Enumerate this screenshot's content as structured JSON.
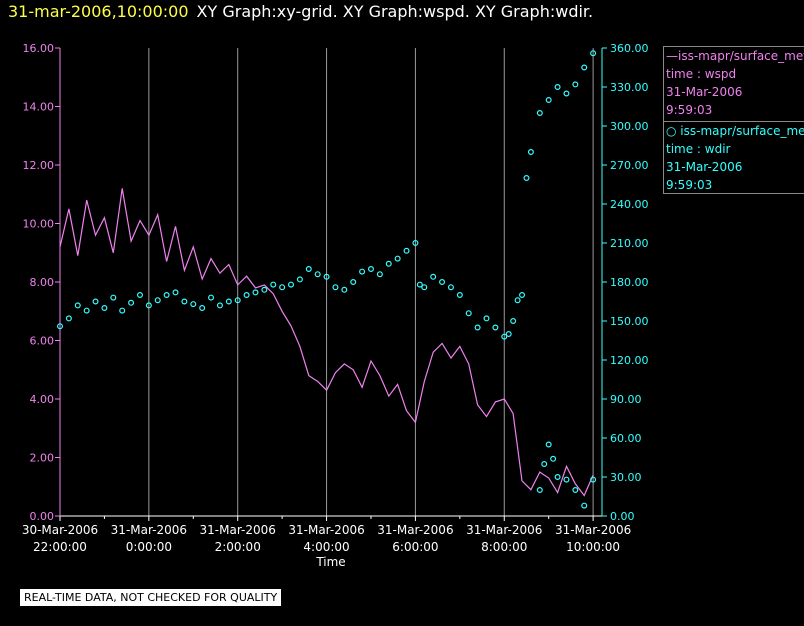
{
  "header": {
    "time": "31-mar-2006,10:00:00",
    "graphs": "XY Graph:xy-grid.  XY Graph:wspd.  XY Graph:wdir."
  },
  "legend": {
    "wspd": {
      "name": "iss-mapr/surface_met",
      "var": "time : wspd",
      "date": "31-Mar-2006",
      "time": "9:59:03"
    },
    "wdir": {
      "name": "iss-mapr/surface_met",
      "var": "time : wdir",
      "date": "31-Mar-2006",
      "time": "9:59:03"
    }
  },
  "footer": {
    "quality": "REAL-TIME DATA, NOT CHECKED FOR QUALITY"
  },
  "colors": {
    "wspd": "#ee82ee",
    "wdir": "#33ffff",
    "grid": "#9a9a9a",
    "axis": "#ffffff"
  },
  "chart_data": {
    "type": "line",
    "xlabel": "Time",
    "xlim": [
      22,
      10.2
    ],
    "x_ticks": [
      {
        "x": 22,
        "date": "30-Mar-2006",
        "time": "22:00:00"
      },
      {
        "x": 0,
        "date": "31-Mar-2006",
        "time": "0:00:00"
      },
      {
        "x": 2,
        "date": "31-Mar-2006",
        "time": "2:00:00"
      },
      {
        "x": 4,
        "date": "31-Mar-2006",
        "time": "4:00:00"
      },
      {
        "x": 6,
        "date": "31-Mar-2006",
        "time": "6:00:00"
      },
      {
        "x": 8,
        "date": "31-Mar-2006",
        "time": "8:00:00"
      },
      {
        "x": 10,
        "date": "31-Mar-2006",
        "time": "10:00:00"
      }
    ],
    "left_axis": {
      "series": "wspd",
      "ylim": [
        0,
        16
      ],
      "ticks": [
        "0.00",
        "2.00",
        "4.00",
        "6.00",
        "8.00",
        "10.00",
        "12.00",
        "14.00",
        "16.00"
      ]
    },
    "right_axis": {
      "series": "wdir",
      "ylim": [
        0,
        360
      ],
      "ticks": [
        "0.00",
        "30.00",
        "60.00",
        "90.00",
        "120.00",
        "150.00",
        "180.00",
        "210.00",
        "240.00",
        "270.00",
        "300.00",
        "330.00",
        "360.00"
      ]
    },
    "series": [
      {
        "key": "wspd",
        "style": "line",
        "x": [
          22.0,
          22.2,
          22.4,
          22.6,
          22.8,
          23.0,
          23.2,
          23.4,
          23.6,
          23.8,
          0.0,
          0.2,
          0.4,
          0.6,
          0.8,
          1.0,
          1.2,
          1.4,
          1.6,
          1.8,
          2.0,
          2.2,
          2.4,
          2.6,
          2.8,
          3.0,
          3.2,
          3.4,
          3.6,
          3.8,
          4.0,
          4.2,
          4.4,
          4.6,
          4.8,
          5.0,
          5.2,
          5.4,
          5.6,
          5.8,
          6.0,
          6.2,
          6.4,
          6.6,
          6.8,
          7.0,
          7.2,
          7.4,
          7.6,
          7.8,
          8.0,
          8.2,
          8.4,
          8.6,
          8.8,
          9.0,
          9.2,
          9.4,
          9.6,
          9.8,
          10.0
        ],
        "values": [
          9.2,
          10.5,
          8.9,
          10.8,
          9.6,
          10.2,
          9.0,
          11.2,
          9.4,
          10.1,
          9.6,
          10.3,
          8.7,
          9.9,
          8.4,
          9.2,
          8.1,
          8.8,
          8.3,
          8.6,
          7.9,
          8.2,
          7.8,
          7.9,
          7.6,
          7.0,
          6.5,
          5.8,
          4.8,
          4.6,
          4.3,
          4.9,
          5.2,
          5.0,
          4.4,
          5.3,
          4.8,
          4.1,
          4.5,
          3.6,
          3.2,
          4.6,
          5.6,
          5.9,
          5.4,
          5.8,
          5.2,
          3.8,
          3.4,
          3.9,
          4.0,
          3.5,
          1.2,
          0.9,
          1.5,
          1.3,
          0.8,
          1.7,
          1.1,
          0.7,
          1.4
        ]
      },
      {
        "key": "wdir",
        "style": "scatter",
        "x": [
          22.0,
          22.2,
          22.4,
          22.6,
          22.8,
          23.0,
          23.2,
          23.4,
          23.6,
          23.8,
          0.0,
          0.2,
          0.4,
          0.6,
          0.8,
          1.0,
          1.2,
          1.4,
          1.6,
          1.8,
          2.0,
          2.2,
          2.4,
          2.6,
          2.8,
          3.0,
          3.2,
          3.4,
          3.6,
          3.8,
          4.0,
          4.2,
          4.4,
          4.6,
          4.8,
          5.0,
          5.2,
          5.4,
          5.6,
          5.8,
          6.0,
          6.1,
          6.2,
          6.4,
          6.6,
          6.8,
          7.0,
          7.2,
          7.4,
          7.6,
          7.8,
          8.0,
          8.1,
          8.2,
          8.3,
          8.4,
          8.5,
          8.6,
          8.8,
          9.0,
          9.2,
          9.4,
          9.6,
          9.8,
          10.0,
          8.8,
          8.9,
          9.0,
          9.1,
          9.2,
          9.4,
          9.6,
          9.8,
          10.0
        ],
        "values": [
          146,
          152,
          162,
          158,
          165,
          160,
          168,
          158,
          164,
          170,
          162,
          166,
          170,
          172,
          165,
          163,
          160,
          168,
          162,
          165,
          166,
          170,
          172,
          174,
          178,
          176,
          178,
          182,
          190,
          186,
          184,
          176,
          174,
          180,
          188,
          190,
          186,
          194,
          198,
          204,
          210,
          178,
          176,
          184,
          180,
          176,
          170,
          156,
          145,
          152,
          145,
          138,
          140,
          150,
          166,
          170,
          260,
          280,
          310,
          320,
          330,
          325,
          332,
          345,
          356,
          20,
          40,
          55,
          44,
          30,
          28,
          20,
          8,
          28
        ]
      }
    ]
  }
}
